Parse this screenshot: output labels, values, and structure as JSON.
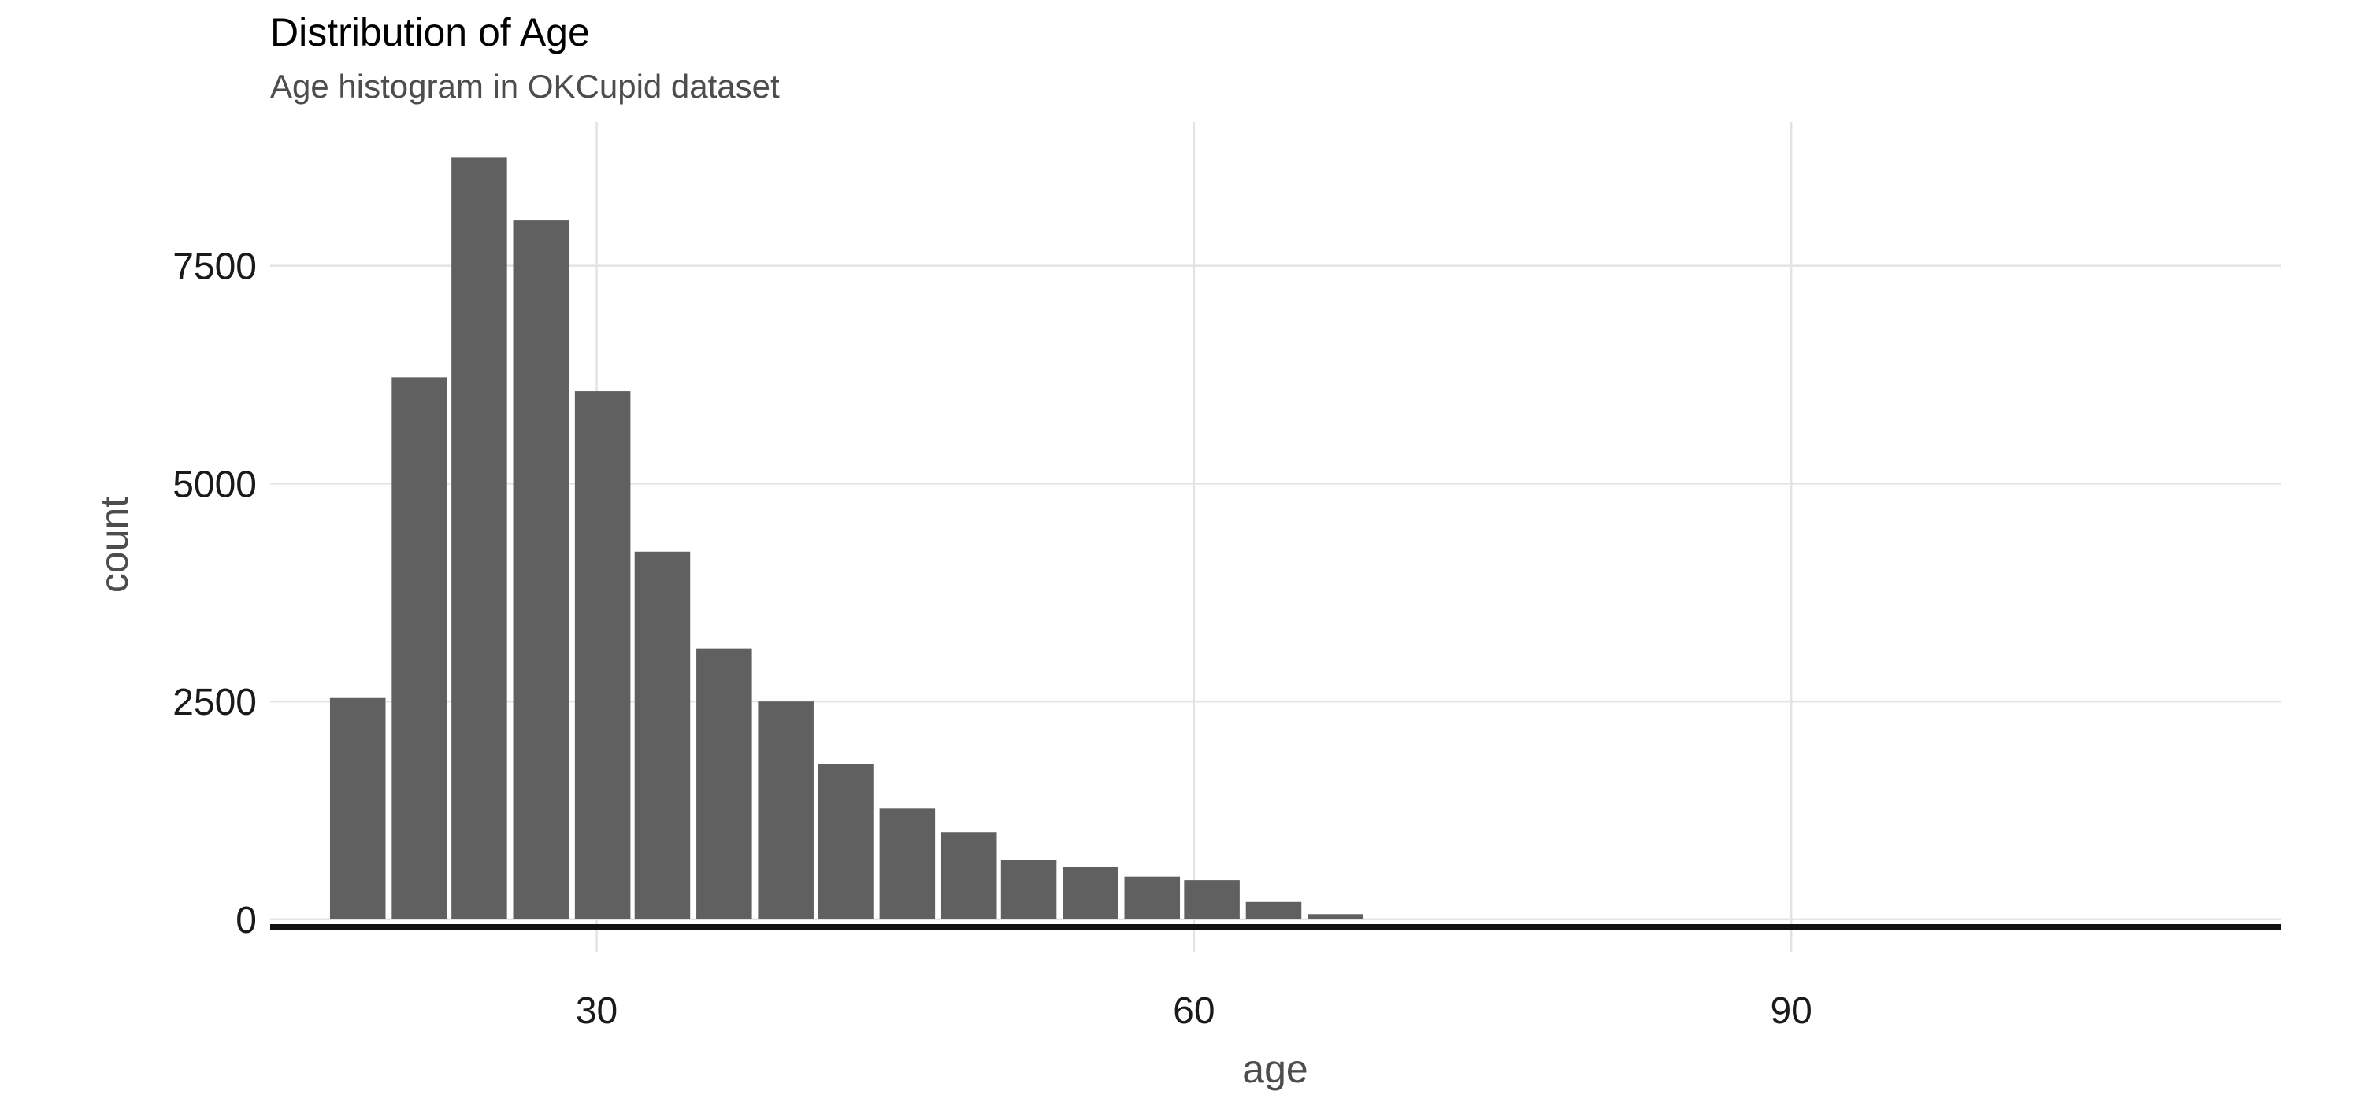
{
  "chart_data": {
    "type": "bar",
    "title": "Distribution of Age",
    "subtitle": "Age histogram in OKCupid dataset",
    "xlabel": "age",
    "ylabel": "count",
    "bin_width": 3.067,
    "bins": [
      {
        "x": 18.0,
        "count": 2540
      },
      {
        "x": 21.1,
        "count": 6220
      },
      {
        "x": 24.1,
        "count": 8740
      },
      {
        "x": 27.2,
        "count": 8020
      },
      {
        "x": 30.3,
        "count": 6060
      },
      {
        "x": 33.3,
        "count": 4220
      },
      {
        "x": 36.4,
        "count": 3110
      },
      {
        "x": 39.5,
        "count": 2500
      },
      {
        "x": 42.5,
        "count": 1780
      },
      {
        "x": 45.6,
        "count": 1270
      },
      {
        "x": 48.7,
        "count": 1000
      },
      {
        "x": 51.7,
        "count": 680
      },
      {
        "x": 54.8,
        "count": 600
      },
      {
        "x": 57.9,
        "count": 490
      },
      {
        "x": 60.9,
        "count": 450
      },
      {
        "x": 64.0,
        "count": 200
      },
      {
        "x": 67.1,
        "count": 60
      },
      {
        "x": 70.1,
        "count": 5
      },
      {
        "x": 73.2,
        "count": 3
      },
      {
        "x": 76.3,
        "count": 2
      },
      {
        "x": 79.3,
        "count": 2
      },
      {
        "x": 82.4,
        "count": 1
      },
      {
        "x": 85.5,
        "count": 1
      },
      {
        "x": 88.5,
        "count": 1
      },
      {
        "x": 91.6,
        "count": 1
      },
      {
        "x": 94.7,
        "count": 1
      },
      {
        "x": 97.7,
        "count": 1
      },
      {
        "x": 100.8,
        "count": 1
      },
      {
        "x": 103.9,
        "count": 1
      },
      {
        "x": 106.9,
        "count": 1
      },
      {
        "x": 110.0,
        "count": 2
      }
    ],
    "xlim": [
      13.6,
      114.6
    ],
    "ylim": [
      -380,
      9150
    ],
    "x_ticks": [
      {
        "value": 30,
        "label": "30"
      },
      {
        "value": 60,
        "label": "60"
      },
      {
        "value": 90,
        "label": "90"
      }
    ],
    "y_ticks": [
      {
        "value": 0,
        "label": "0"
      },
      {
        "value": 2500,
        "label": "2500"
      },
      {
        "value": 5000,
        "label": "5000"
      },
      {
        "value": 7500,
        "label": "7500"
      }
    ],
    "grid": true,
    "bar_color": "#606060",
    "grid_color": "#e3e3e3"
  }
}
